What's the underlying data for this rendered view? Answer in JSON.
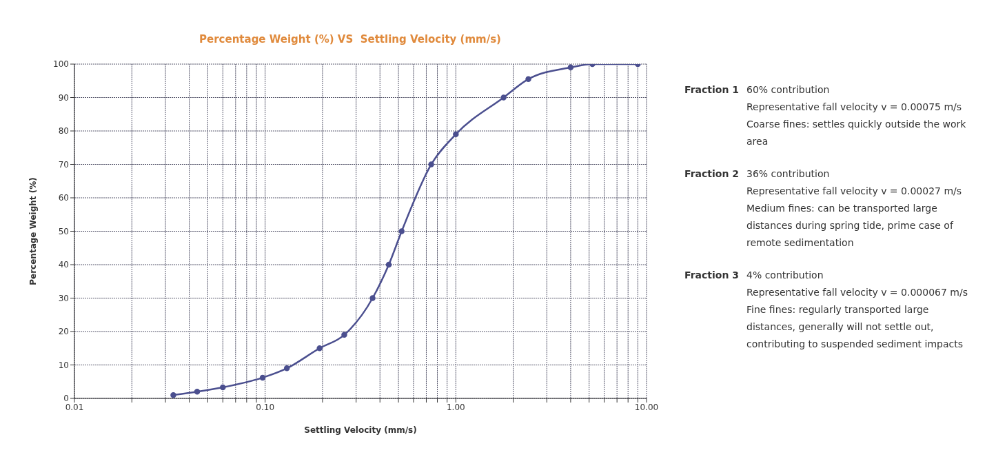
{
  "chart_data": {
    "type": "line",
    "title": "Percentage Weight (%) VS  Settling Velocity (mm/s)",
    "xlabel": "Settling Velocity (mm/s)",
    "ylabel": "Percentage Weight (%)",
    "series": [
      {
        "color": "#4b4f8f",
        "x": [
          0.033,
          0.044,
          0.06,
          0.097,
          0.13,
          0.193,
          0.26,
          0.366,
          0.445,
          0.52,
          0.743,
          1.0,
          1.78,
          2.4,
          4.0,
          5.2,
          9.0
        ],
        "values": [
          1,
          2,
          3.3,
          6.2,
          9,
          15,
          19,
          30,
          40,
          50,
          70,
          79,
          90,
          95.5,
          99,
          100,
          100
        ]
      }
    ],
    "log": "x",
    "xlim": [
      0.01,
      10
    ],
    "xticks": [
      {
        "value": 0.01,
        "label": "0.01"
      },
      {
        "value": 0.02,
        "label": null
      },
      {
        "value": 0.03,
        "label": null
      },
      {
        "value": 0.04,
        "label": null
      },
      {
        "value": 0.05,
        "label": null
      },
      {
        "value": 0.06,
        "label": null
      },
      {
        "value": 0.07,
        "label": null
      },
      {
        "value": 0.08,
        "label": null
      },
      {
        "value": 0.09,
        "label": null
      },
      {
        "value": 0.1,
        "label": "0.10"
      },
      {
        "value": 0.2,
        "label": null
      },
      {
        "value": 0.3,
        "label": null
      },
      {
        "value": 0.4,
        "label": null
      },
      {
        "value": 0.5,
        "label": null
      },
      {
        "value": 0.6,
        "label": null
      },
      {
        "value": 0.7,
        "label": null
      },
      {
        "value": 0.8,
        "label": null
      },
      {
        "value": 0.9,
        "label": null
      },
      {
        "value": 1,
        "label": "1.00"
      },
      {
        "value": 2,
        "label": null
      },
      {
        "value": 3,
        "label": null
      },
      {
        "value": 4,
        "label": null
      },
      {
        "value": 5,
        "label": null
      },
      {
        "value": 6,
        "label": null
      },
      {
        "value": 7,
        "label": null
      },
      {
        "value": 8,
        "label": null
      },
      {
        "value": 9,
        "label": null
      },
      {
        "value": 10,
        "label": "10.00"
      }
    ],
    "ylim": [
      0,
      100
    ],
    "yticks": [
      0,
      10,
      20,
      30,
      40,
      50,
      60,
      70,
      80,
      90,
      100
    ],
    "grid": true,
    "marker": "circle",
    "line_style": "solid",
    "legend": false,
    "annotations": [
      "Fraction 1",
      "60% contribution",
      "Representative fall velocity v = 0.00075 m/s",
      "Coarse fines: settles quickly outside the work area",
      "Fraction 2",
      "36% contribution",
      "Representative fall velocity v = 0.00027 m/s",
      "Medium fines: can be transported large distances during spring tide, prime case of remote sedimentation",
      "Fraction 3",
      "4% contribution",
      "Representative fall velocity v = 0.000067 m/s",
      "Fine fines: regularly transported large distances, generally will not settle out, contributing to suspended sediment impacts"
    ]
  }
}
